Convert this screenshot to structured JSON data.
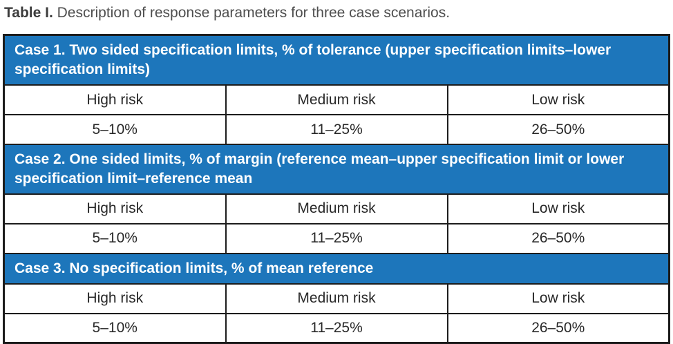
{
  "title": {
    "label": "Table I.",
    "text": " Description of response parameters for three case scenarios."
  },
  "colors": {
    "band_blue": "#1d76bb",
    "border_black": "#1c1c1c",
    "band_text": "#ffffff",
    "cell_text": "#282828",
    "title_text": "#4e4e4e"
  },
  "sections": [
    {
      "caption": "Case 1. Two sided specification limits, % of tolerance (upper specification limits–lower specification limits)",
      "risks": [
        "High risk",
        "Medium risk",
        "Low risk"
      ],
      "values": [
        "5–10%",
        "11–25%",
        "26–50%"
      ]
    },
    {
      "caption": "Case 2. One sided limits, % of margin (reference mean–upper specification limit or lower specification limit–reference mean",
      "risks": [
        "High risk",
        "Medium risk",
        "Low risk"
      ],
      "values": [
        "5–10%",
        "11–25%",
        "26–50%"
      ]
    },
    {
      "caption": "Case 3. No specification limits, % of mean reference",
      "risks": [
        "High risk",
        "Medium risk",
        "Low risk"
      ],
      "values": [
        "5–10%",
        "11–25%",
        "26–50%"
      ]
    }
  ]
}
